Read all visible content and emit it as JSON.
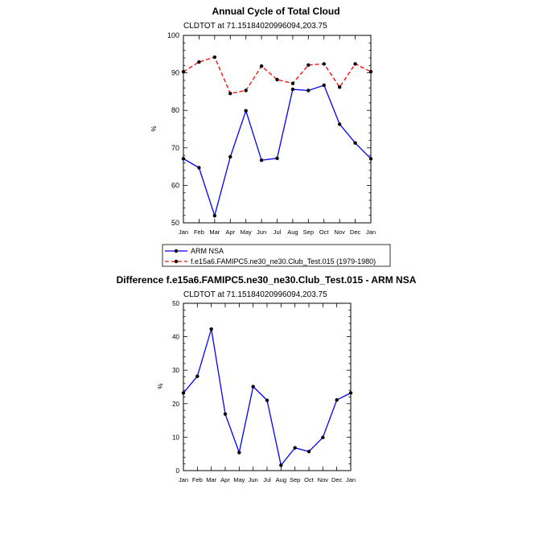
{
  "chart_data": [
    {
      "type": "line",
      "title": "Annual Cycle of Total Cloud",
      "subtitle": "CLDTOT at 71.15184020996094,203.75",
      "xlabel": "",
      "ylabel": "%",
      "categories": [
        "Jan",
        "Feb",
        "Mar",
        "Apr",
        "May",
        "Jun",
        "Jul",
        "Aug",
        "Sep",
        "Oct",
        "Nov",
        "Dec",
        "Jan"
      ],
      "ylim": [
        50,
        100
      ],
      "yticks": [
        50,
        60,
        70,
        80,
        90,
        100
      ],
      "grid": false,
      "legend_position": "bottom",
      "series": [
        {
          "name": "ARM NSA",
          "color": "#0000ff",
          "dash": "solid",
          "values": [
            67.1,
            64.7,
            51.9,
            67.6,
            79.9,
            66.7,
            67.2,
            85.6,
            85.3,
            86.7,
            76.3,
            71.3,
            67.1
          ]
        },
        {
          "name": "f.e15a6.FAMIPC5.ne30_ne30.Club_Test.015 (1979-1980)",
          "color": "#ff0000",
          "dash": "dashed",
          "values": [
            90.3,
            92.9,
            94.2,
            84.5,
            85.3,
            91.8,
            88.2,
            87.2,
            92.1,
            92.4,
            86.2,
            92.4,
            90.3
          ]
        }
      ]
    },
    {
      "type": "line",
      "title": "Difference f.e15a6.FAMIPC5.ne30_ne30.Club_Test.015 - ARM NSA",
      "subtitle": "CLDTOT at 71.15184020996094,203.75",
      "xlabel": "",
      "ylabel": "%",
      "categories": [
        "Jan",
        "Feb",
        "Mar",
        "Apr",
        "May",
        "Jun",
        "Jul",
        "Aug",
        "Sep",
        "Oct",
        "Nov",
        "Dec",
        "Jan"
      ],
      "ylim": [
        0,
        50
      ],
      "yticks": [
        0,
        10,
        20,
        30,
        40,
        50
      ],
      "grid": false,
      "series": [
        {
          "color": "#0000ff",
          "dash": "solid",
          "values": [
            23.2,
            28.2,
            42.3,
            16.9,
            5.4,
            25.1,
            21.0,
            1.6,
            6.8,
            5.7,
            9.9,
            21.1,
            23.2
          ]
        }
      ]
    }
  ]
}
